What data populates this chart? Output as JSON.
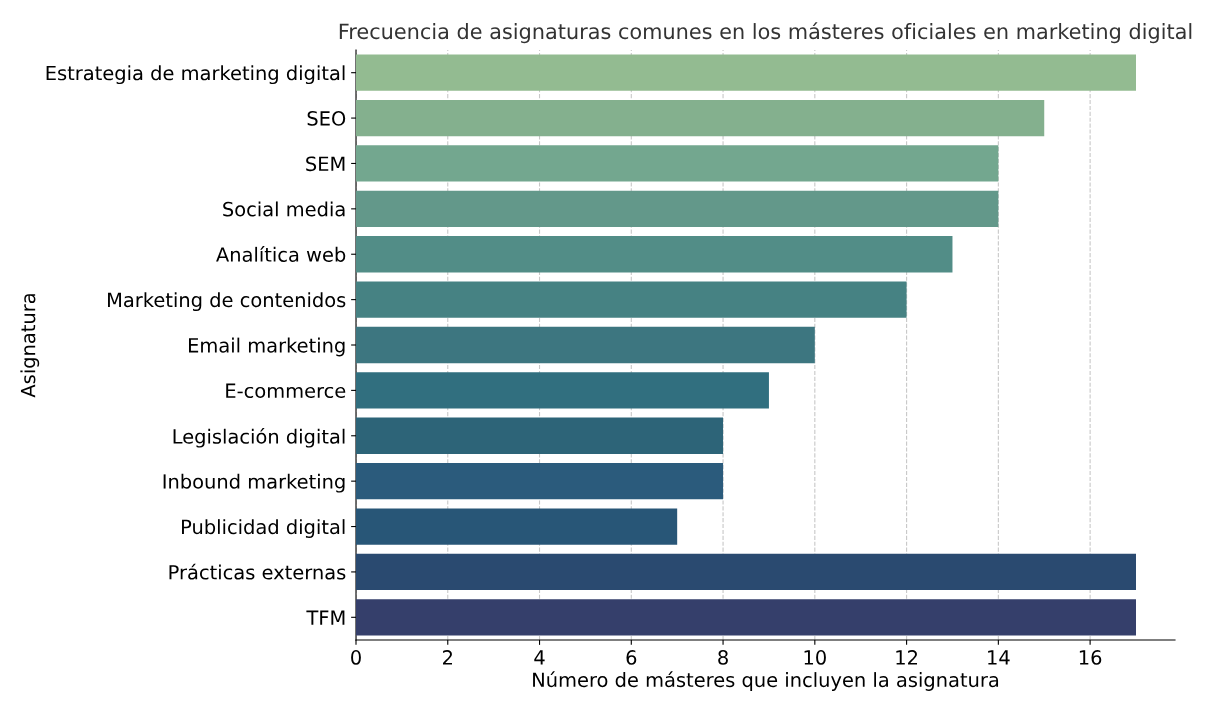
{
  "chart_data": {
    "type": "bar",
    "orientation": "horizontal",
    "title": "Frecuencia de asignaturas comunes en los másteres oficiales en marketing digital",
    "xlabel": "Número de másteres que incluyen la asignatura",
    "ylabel": "Asignatura",
    "categories": [
      "Estrategia de marketing digital",
      "SEO",
      "SEM",
      "Social media",
      "Analítica web",
      "Marketing de contenidos",
      "Email marketing",
      "E-commerce",
      "Legislación digital",
      "Inbound marketing",
      "Publicidad digital",
      "Prácticas externas",
      "TFM"
    ],
    "values": [
      17,
      15,
      14,
      14,
      13,
      12,
      10,
      9,
      8,
      8,
      7,
      17,
      17
    ],
    "colors": [
      "#93bb91",
      "#84b08e",
      "#73a78f",
      "#63988a",
      "#528d87",
      "#468283",
      "#3d7680",
      "#316f7f",
      "#2d6478",
      "#2b5b7c",
      "#285677",
      "#2a4a70",
      "#353f6b"
    ],
    "xlim": [
      0,
      17.85
    ],
    "xticks": [
      0,
      2,
      4,
      6,
      8,
      10,
      12,
      14,
      16
    ],
    "grid": "x"
  }
}
